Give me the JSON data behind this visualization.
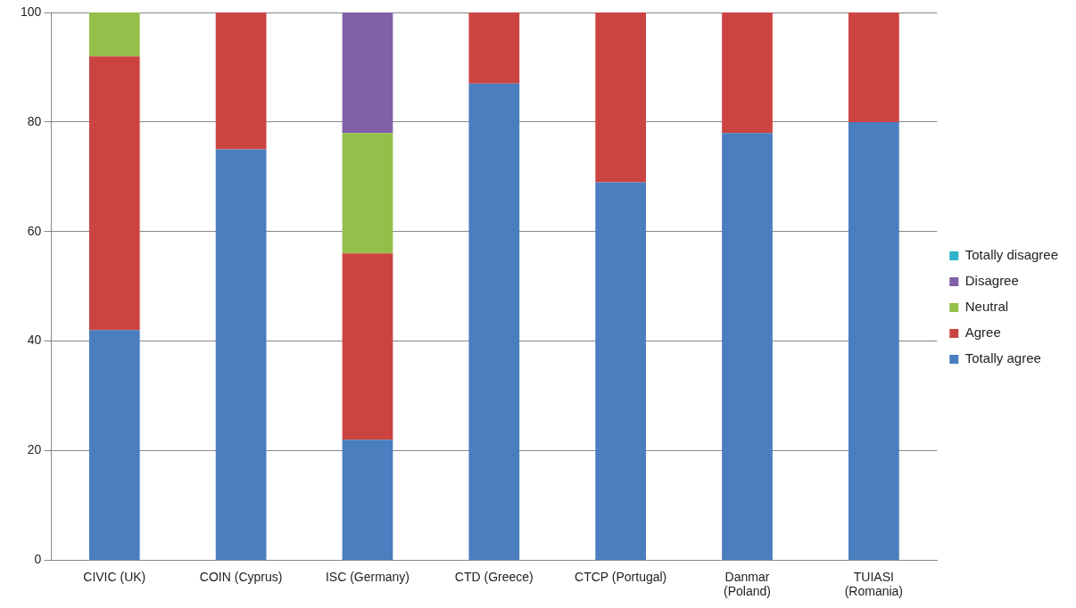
{
  "chart_data": {
    "type": "bar",
    "stacked": true,
    "categories": [
      "CIVIC (UK)",
      "COIN (Cyprus)",
      "ISC (Germany)",
      "CTD (Greece)",
      "CTCP (Portugal)",
      "Danmar\n(Poland)",
      "TUIASI\n(Romania)"
    ],
    "series": [
      {
        "name": "Totally agree",
        "color": "#4a7ebf",
        "values": [
          42,
          75,
          22,
          87,
          69,
          78,
          80
        ]
      },
      {
        "name": "Agree",
        "color": "#cc4441",
        "values": [
          50,
          25,
          34,
          13,
          31,
          22,
          20
        ]
      },
      {
        "name": "Neutral",
        "color": "#93bf4a",
        "values": [
          8,
          0,
          22,
          0,
          0,
          0,
          0
        ]
      },
      {
        "name": "Disagree",
        "color": "#8260a8",
        "values": [
          0,
          0,
          22,
          0,
          0,
          0,
          0
        ]
      },
      {
        "name": "Totally disagree",
        "color": "#2fb3c8",
        "values": [
          0,
          0,
          0,
          0,
          0,
          0,
          0
        ]
      }
    ],
    "ylim": [
      0,
      100
    ],
    "yticks": [
      0,
      20,
      40,
      60,
      80,
      100
    ],
    "grid": "y",
    "legend": "right"
  }
}
